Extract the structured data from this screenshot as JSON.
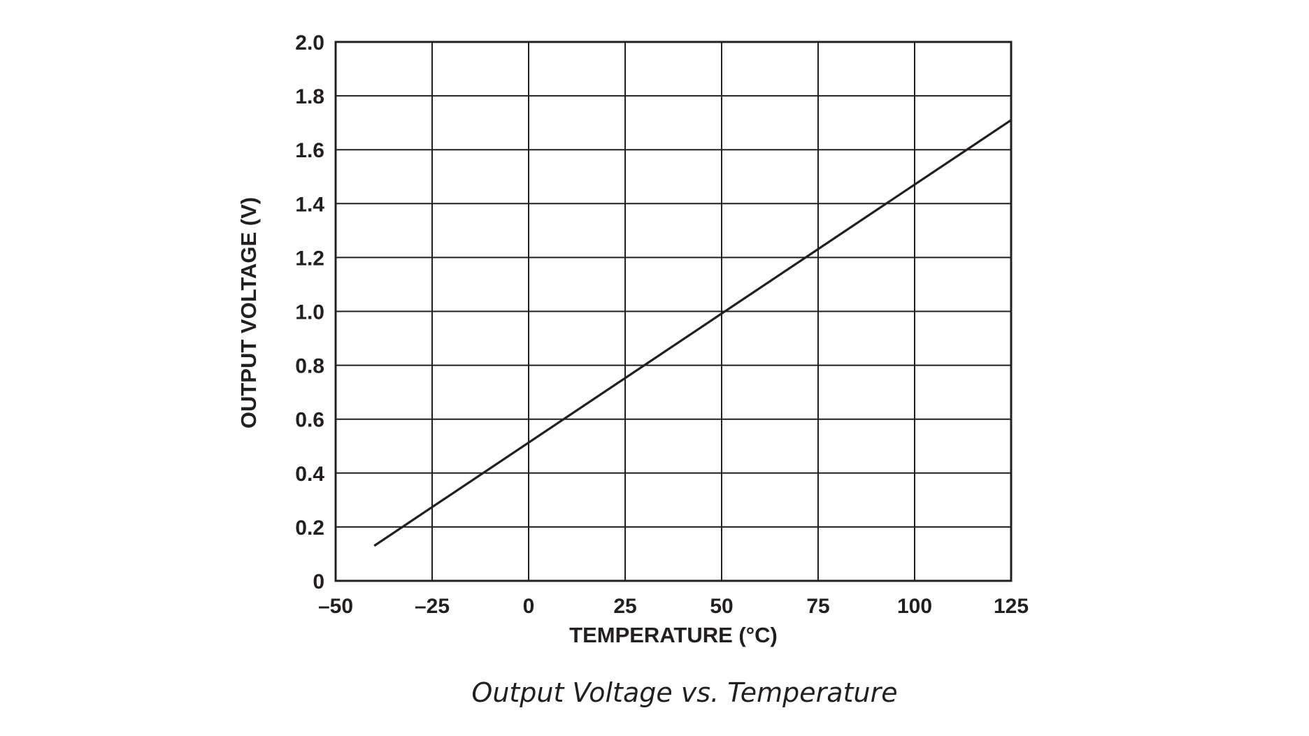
{
  "chart_data": {
    "type": "line",
    "caption": "Output Voltage vs. Temperature",
    "xlabel": "TEMPERATURE (°C)",
    "ylabel": "OUTPUT VOLTAGE (V)",
    "xlim": [
      -50,
      125
    ],
    "ylim": [
      0,
      2.0
    ],
    "x_ticks": [
      -50,
      -25,
      0,
      25,
      50,
      75,
      100,
      125
    ],
    "x_tick_labels": [
      "–50",
      "–25",
      "0",
      "25",
      "50",
      "75",
      "100",
      "125"
    ],
    "y_ticks": [
      0,
      0.2,
      0.4,
      0.6,
      0.8,
      1.0,
      1.2,
      1.4,
      1.6,
      1.8,
      2.0
    ],
    "y_tick_labels": [
      "0",
      "0.2",
      "0.4",
      "0.6",
      "0.8",
      "1.0",
      "1.2",
      "1.4",
      "1.6",
      "1.8",
      "2.0"
    ],
    "grid": true,
    "series": [
      {
        "x": [
          -40,
          125
        ],
        "y": [
          0.13,
          1.71
        ]
      }
    ],
    "colors": {
      "line": "#231f20",
      "grid": "#231f20"
    }
  }
}
